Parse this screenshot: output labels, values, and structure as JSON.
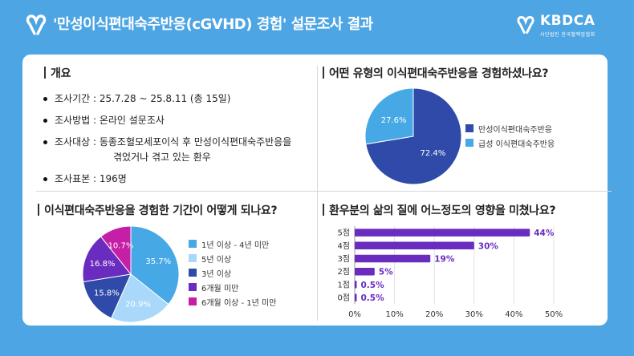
{
  "header": {
    "title": "'만성이식편대숙주반응(cGVHD) 경험' 설문조사 결과",
    "brand_name": "KBDCA",
    "brand_sub": "사단법인 한국혈액암협회"
  },
  "overview": {
    "title": "개요",
    "items": [
      {
        "label": "조사기간 : 25.7.28 ~ 25.8.11 (총 15일)"
      },
      {
        "label": "조사방법 : 온라인 설문조사"
      },
      {
        "label": "조사대상 : 동종조혈모세포이식 후 만성이식편대숙주반응을",
        "cont": "겪었거나 겪고 있는 환우"
      },
      {
        "label": "조사표본 : 196명"
      }
    ]
  },
  "chart_data": [
    {
      "type": "pie",
      "title": "어떤 유형의 이식편대숙주반응을 경험하셨나요?",
      "labels": [
        "만성이식편대숙주반응",
        "급성 이식편대숙주반응"
      ],
      "values": [
        72.4,
        27.6
      ],
      "value_labels": [
        "72.4%",
        "27.6%"
      ],
      "colors": [
        "#2f4aa8",
        "#47a8e6"
      ],
      "legend_position": "right"
    },
    {
      "type": "pie",
      "title": "이식편대숙주반응을 경험한 기간이 어떻게 되나요?",
      "labels": [
        "1년 이상 - 4년 미만",
        "5년 이상",
        "3년 이상",
        "6개월 미만",
        "6개월 이상 - 1년 미만"
      ],
      "values": [
        35.7,
        20.9,
        15.8,
        16.8,
        10.7
      ],
      "value_labels": [
        "35.7%",
        "20.9%",
        "15.8%",
        "16.8%",
        "10.7%"
      ],
      "colors": [
        "#47a8e6",
        "#a9d8fa",
        "#2f4aa8",
        "#6a2bbf",
        "#c41fa6"
      ],
      "legend_position": "right"
    },
    {
      "type": "bar",
      "orientation": "horizontal",
      "title": "환우분의 삶의 질에 어느정도의 영향을 미쳤나요?",
      "categories": [
        "5점",
        "4점",
        "3점",
        "2점",
        "1점",
        "0점"
      ],
      "values": [
        44,
        30,
        19,
        5,
        0.5,
        0.5
      ],
      "value_labels": [
        "44%",
        "30%",
        "19%",
        "5%",
        "0.5%",
        "0.5%"
      ],
      "xlim": [
        0,
        50
      ],
      "xticks": [
        "0%",
        "10%",
        "20%",
        "30%",
        "40%",
        "50%"
      ],
      "bar_color": "#6a2bbf",
      "grid": true
    }
  ]
}
